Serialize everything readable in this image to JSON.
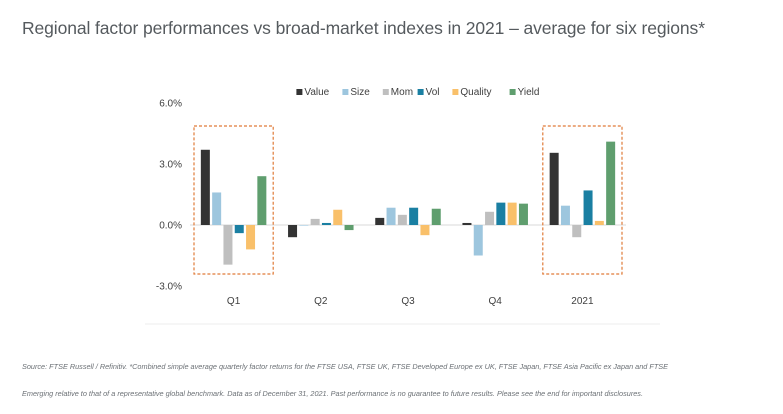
{
  "title": "Regional factor performances vs broad-market indexes in 2021 – average for six regions*",
  "footnote_line1": "Source: FTSE Russell / Refinitiv. *Combined simple average quarterly factor returns for the FTSE USA, FTSE UK, FTSE Developed Europe ex UK, FTSE Japan, FTSE Asia Pacific ex Japan and FTSE",
  "footnote_line2": "Emerging relative to that of a representative global benchmark. Data as of December 31, 2021. Past performance is no guarantee to future results. Please see the end for important disclosures.",
  "chart_data": {
    "type": "bar",
    "title": "",
    "xlabel": "",
    "ylabel": "",
    "categories": [
      "Q1",
      "Q2",
      "Q3",
      "Q4",
      "2021"
    ],
    "ylim": [
      -3.0,
      6.0
    ],
    "yticks": [
      -3.0,
      0.0,
      3.0,
      6.0
    ],
    "ytick_labels": [
      "-3.0%",
      "0.0%",
      "3.0%",
      "6.0%"
    ],
    "grid": false,
    "legend_position": "top",
    "highlighted_categories": [
      "Q1",
      "2021"
    ],
    "highlight_color": "#e07b39",
    "series": [
      {
        "name": "Value",
        "color": "#333333",
        "values": [
          3.7,
          -0.6,
          0.35,
          0.1,
          3.55
        ]
      },
      {
        "name": "Size",
        "color": "#9dc6de",
        "values": [
          1.6,
          0.0,
          0.85,
          -1.5,
          0.95
        ]
      },
      {
        "name": "Mom",
        "color": "#bfbfbf",
        "values": [
          -1.95,
          0.3,
          0.5,
          0.65,
          -0.6
        ]
      },
      {
        "name": "Vol",
        "color": "#1a7fa2",
        "values": [
          -0.4,
          0.1,
          0.85,
          1.1,
          1.7
        ]
      },
      {
        "name": "Quality",
        "color": "#f9c06a",
        "values": [
          -1.2,
          0.75,
          -0.5,
          1.1,
          0.2
        ]
      },
      {
        "name": "Yield",
        "color": "#5f9e6e",
        "values": [
          2.4,
          -0.25,
          0.8,
          1.05,
          4.1
        ]
      }
    ]
  }
}
